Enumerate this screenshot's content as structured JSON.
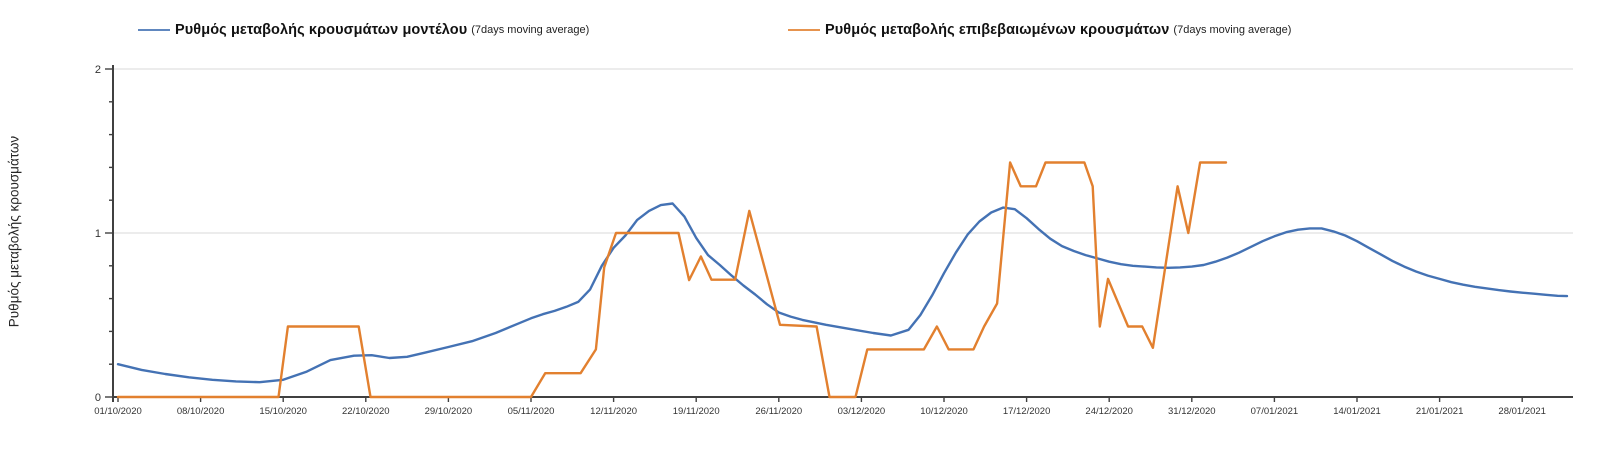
{
  "legend": {
    "items": [
      {
        "label": "Ρυθμός μεταβολής κρουσμάτων μοντέλου",
        "sublabel": "(7days moving average)",
        "color": "#4472B4"
      },
      {
        "label": "Ρυθμός μεταβολής επιβεβαιωμένων κρουσμάτων",
        "sublabel": "(7days moving average)",
        "color": "#E2802F"
      }
    ]
  },
  "y_axis": {
    "title": "Ρυθμός μεταβολής κρουσμάτων",
    "tick_values": [
      0,
      1,
      2
    ],
    "minor_tick_step": 0.2,
    "min": 0,
    "max": 2
  },
  "x_axis": {
    "tick_labels": [
      "01/10/2020",
      "08/10/2020",
      "15/10/2020",
      "22/10/2020",
      "29/10/2020",
      "05/11/2020",
      "12/11/2020",
      "19/11/2020",
      "26/11/2020",
      "03/12/2020",
      "10/12/2020",
      "17/12/2020",
      "24/12/2020",
      "31/12/2020",
      "07/01/2021",
      "14/01/2021",
      "21/01/2021",
      "28/01/2021"
    ],
    "tick_days": [
      0,
      7,
      14,
      21,
      28,
      35,
      42,
      49,
      56,
      63,
      70,
      77,
      84,
      91,
      98,
      105,
      112,
      119
    ]
  },
  "chart_data": {
    "type": "line",
    "title": "",
    "xlabel": "",
    "ylabel": "Ρυθμός μεταβολής κρουσμάτων",
    "x_unit": "days since 01/10/2020",
    "x_domain": [
      0,
      123.3
    ],
    "ylim": [
      0,
      2
    ],
    "gridlines_y": [
      1,
      2
    ],
    "legend_position": "top",
    "grid": "horizontal-major-only",
    "series": [
      {
        "name": "Ρυθμός μεταβολής κρουσμάτων μοντέλου (7days moving average)",
        "color": "#4472B4",
        "points": [
          [
            0,
            0.2
          ],
          [
            2,
            0.165
          ],
          [
            4,
            0.14
          ],
          [
            6,
            0.12
          ],
          [
            8,
            0.105
          ],
          [
            10,
            0.095
          ],
          [
            12,
            0.09
          ],
          [
            14,
            0.105
          ],
          [
            16,
            0.155
          ],
          [
            18,
            0.225
          ],
          [
            20,
            0.252
          ],
          [
            21.5,
            0.255
          ],
          [
            23,
            0.238
          ],
          [
            24.5,
            0.245
          ],
          [
            26,
            0.27
          ],
          [
            28,
            0.305
          ],
          [
            30,
            0.34
          ],
          [
            32,
            0.39
          ],
          [
            34,
            0.45
          ],
          [
            35,
            0.48
          ],
          [
            36,
            0.505
          ],
          [
            37,
            0.525
          ],
          [
            38,
            0.55
          ],
          [
            39,
            0.58
          ],
          [
            40,
            0.655
          ],
          [
            41,
            0.8
          ],
          [
            42,
            0.91
          ],
          [
            43,
            0.985
          ],
          [
            44,
            1.08
          ],
          [
            45,
            1.135
          ],
          [
            46,
            1.17
          ],
          [
            47,
            1.18
          ],
          [
            48,
            1.1
          ],
          [
            49,
            0.97
          ],
          [
            50,
            0.865
          ],
          [
            51,
            0.805
          ],
          [
            52,
            0.74
          ],
          [
            53,
            0.68
          ],
          [
            54,
            0.625
          ],
          [
            55,
            0.565
          ],
          [
            56,
            0.515
          ],
          [
            57,
            0.49
          ],
          [
            58,
            0.47
          ],
          [
            60,
            0.44
          ],
          [
            62,
            0.415
          ],
          [
            64,
            0.39
          ],
          [
            65.5,
            0.375
          ],
          [
            67,
            0.41
          ],
          [
            68,
            0.5
          ],
          [
            69,
            0.62
          ],
          [
            70,
            0.755
          ],
          [
            71,
            0.88
          ],
          [
            72,
            0.99
          ],
          [
            73,
            1.07
          ],
          [
            74,
            1.125
          ],
          [
            75,
            1.155
          ],
          [
            76,
            1.145
          ],
          [
            77,
            1.09
          ],
          [
            78,
            1.025
          ],
          [
            79,
            0.965
          ],
          [
            80,
            0.92
          ],
          [
            81,
            0.89
          ],
          [
            82,
            0.865
          ],
          [
            83,
            0.845
          ],
          [
            84,
            0.825
          ],
          [
            85,
            0.81
          ],
          [
            86,
            0.8
          ],
          [
            87,
            0.795
          ],
          [
            88,
            0.79
          ],
          [
            89,
            0.788
          ],
          [
            90,
            0.79
          ],
          [
            91,
            0.795
          ],
          [
            92,
            0.805
          ],
          [
            93,
            0.825
          ],
          [
            94,
            0.85
          ],
          [
            95,
            0.88
          ],
          [
            96,
            0.915
          ],
          [
            97,
            0.95
          ],
          [
            98,
            0.98
          ],
          [
            99,
            1.005
          ],
          [
            100,
            1.02
          ],
          [
            101,
            1.028
          ],
          [
            102,
            1.028
          ],
          [
            103,
            1.01
          ],
          [
            104,
            0.985
          ],
          [
            105,
            0.95
          ],
          [
            106,
            0.91
          ],
          [
            107,
            0.87
          ],
          [
            108,
            0.83
          ],
          [
            109,
            0.795
          ],
          [
            110,
            0.765
          ],
          [
            111,
            0.74
          ],
          [
            112,
            0.72
          ],
          [
            113,
            0.7
          ],
          [
            114,
            0.685
          ],
          [
            115,
            0.672
          ],
          [
            116,
            0.662
          ],
          [
            117,
            0.652
          ],
          [
            118,
            0.643
          ],
          [
            119,
            0.636
          ],
          [
            120,
            0.63
          ],
          [
            121,
            0.623
          ],
          [
            122,
            0.617
          ],
          [
            122.8,
            0.615
          ]
        ]
      },
      {
        "name": "Ρυθμός μεταβολής επιβεβαιωμένων κρουσμάτων (7days moving average)",
        "color": "#E2802F",
        "points": [
          [
            0,
            0
          ],
          [
            13.6,
            0
          ],
          [
            14.4,
            0.43
          ],
          [
            20.4,
            0.43
          ],
          [
            21.4,
            0
          ],
          [
            35,
            0
          ],
          [
            36.2,
            0.145
          ],
          [
            39.2,
            0.145
          ],
          [
            40.5,
            0.29
          ],
          [
            41.2,
            0.79
          ],
          [
            42.2,
            1.0
          ],
          [
            47.5,
            1.0
          ],
          [
            48.4,
            0.713
          ],
          [
            49.4,
            0.857
          ],
          [
            50.3,
            0.715
          ],
          [
            52.3,
            0.715
          ],
          [
            53.5,
            1.135
          ],
          [
            56.1,
            0.44
          ],
          [
            59.2,
            0.43
          ],
          [
            60.3,
            0
          ],
          [
            62.5,
            0
          ],
          [
            63.5,
            0.29
          ],
          [
            68.3,
            0.29
          ],
          [
            69.4,
            0.43
          ],
          [
            70.4,
            0.29
          ],
          [
            72.5,
            0.29
          ],
          [
            73.4,
            0.43
          ],
          [
            74.5,
            0.57
          ],
          [
            75.6,
            1.43
          ],
          [
            76.5,
            1.285
          ],
          [
            77.8,
            1.285
          ],
          [
            78.6,
            1.43
          ],
          [
            81.9,
            1.43
          ],
          [
            82.6,
            1.285
          ],
          [
            83.2,
            0.43
          ],
          [
            83.9,
            0.72
          ],
          [
            85.6,
            0.43
          ],
          [
            86.8,
            0.43
          ],
          [
            87.7,
            0.3
          ],
          [
            89.8,
            1.285
          ],
          [
            90.7,
            1.0
          ],
          [
            91.7,
            1.43
          ],
          [
            93.9,
            1.43
          ]
        ]
      }
    ]
  },
  "colors": {
    "axis": "#404040",
    "gridline": "#D9D9D9",
    "tick_label": "#333333"
  }
}
